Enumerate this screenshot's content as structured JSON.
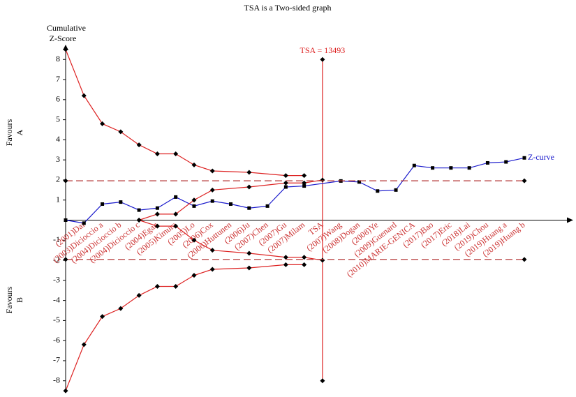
{
  "chart_data": {
    "type": "line",
    "title": "TSA is a Two-sided graph",
    "ylabel": [
      "Cumulative",
      "Z-Score"
    ],
    "favours_a": [
      "Favours",
      "A"
    ],
    "favours_b": [
      "Favours",
      "B"
    ],
    "categories": [
      null,
      "(2001)Dai",
      "(2003)Dicioccio a",
      "(2004)Dicioccio b",
      "(2004)Dicioccio c",
      "(2004)Egan",
      "(2005)Kimura",
      "(2005)Lo",
      "(2006)Cox",
      "(2006)Huttunen",
      "(2006)Ju",
      "(2007)Chen",
      "(2007)Gu",
      "(2007)Milam",
      "TSA",
      "(2007)Wang",
      "(2008)Dogan",
      "(2008)Ye",
      "(2009)Guenard",
      "(2010)MARIE-GENICA",
      "(2017)Bao",
      "(2017)Eric",
      "(2018)Lai",
      "(2019)Chou",
      "(2019)Huang a",
      "(2019)Huang b"
    ],
    "xlim": [
      0,
      25
    ],
    "ylim": [
      -8.6,
      8.6
    ],
    "yticks": [
      -8,
      -7,
      -6,
      -5,
      -4,
      -3,
      -2,
      -1,
      1,
      2,
      3,
      4,
      5,
      6,
      7,
      8
    ],
    "label_color": "#cc3333",
    "series": [
      {
        "name": "Z-curve",
        "color": "#1a1acc",
        "marker": "square",
        "x": [
          0,
          1,
          2,
          3,
          4,
          5,
          6,
          7,
          8,
          9,
          10,
          11,
          12,
          13,
          15,
          16,
          17,
          18,
          19,
          20,
          21,
          22,
          23,
          24,
          25
        ],
        "values": [
          0,
          -0.15,
          0.8,
          0.9,
          0.5,
          0.6,
          1.15,
          0.7,
          0.95,
          0.8,
          0.6,
          0.7,
          1.65,
          1.7,
          1.95,
          1.9,
          1.45,
          1.5,
          2.72,
          2.6,
          2.6,
          2.6,
          2.85,
          2.9,
          3.1
        ]
      },
      {
        "color": "#dd2222",
        "marker": "diamond",
        "x": [
          0,
          1,
          2,
          3,
          4,
          5,
          6,
          7,
          8,
          10,
          12,
          13
        ],
        "values": [
          8.5,
          6.2,
          4.8,
          4.4,
          3.75,
          3.3,
          3.3,
          2.75,
          2.45,
          2.38,
          2.22,
          2.22
        ]
      },
      {
        "color": "#dd2222",
        "marker": "diamond",
        "x": [
          0,
          1,
          2,
          3,
          4,
          5,
          6,
          7,
          8,
          10,
          12,
          13
        ],
        "values": [
          -8.5,
          -6.2,
          -4.8,
          -4.4,
          -3.75,
          -3.3,
          -3.3,
          -2.75,
          -2.45,
          -2.38,
          -2.22,
          -2.22
        ]
      },
      {
        "color": "#dd2222",
        "marker": "diamond",
        "x": [
          4,
          5,
          6,
          7,
          8,
          10,
          12,
          13,
          14
        ],
        "values": [
          0,
          0.3,
          0.3,
          1.0,
          1.5,
          1.65,
          1.85,
          1.85,
          2.0
        ]
      },
      {
        "color": "#dd2222",
        "marker": "diamond",
        "x": [
          4,
          5,
          6,
          7,
          8,
          10,
          12,
          13,
          14
        ],
        "values": [
          0,
          -0.3,
          -0.3,
          -1.0,
          -1.5,
          -1.65,
          -1.85,
          -1.85,
          -2.0
        ]
      },
      {
        "color": "#b33333",
        "marker": "diamond",
        "dashed": true,
        "x": [
          0,
          25
        ],
        "values": [
          1.96,
          1.96
        ]
      },
      {
        "color": "#b33333",
        "marker": "diamond",
        "dashed": true,
        "x": [
          0,
          25
        ],
        "values": [
          -1.96,
          -1.96
        ]
      }
    ],
    "tsa": {
      "label": "TSA = 13493",
      "x": 14,
      "range": [
        -8,
        8
      ],
      "color": "#dd2222"
    }
  }
}
